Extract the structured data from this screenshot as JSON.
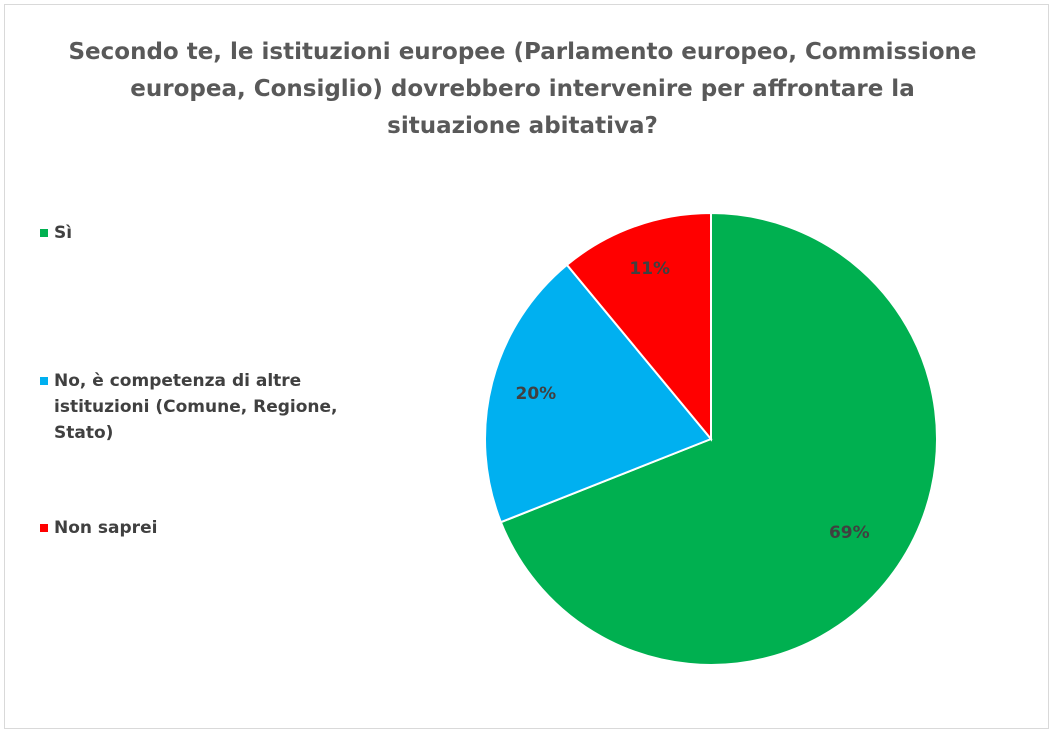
{
  "chart_data": {
    "type": "pie",
    "title": "Secondo te, le istituzioni europee (Parlamento europeo, Commissione europea, Consiglio) dovrebbero intervenire per affrontare la situazione abitativa?",
    "categories": [
      "Sì",
      "No, è competenza di altre istituzioni (Comune, Regione, Stato)",
      "Non saprei"
    ],
    "values": [
      69,
      20,
      11
    ],
    "data_labels": [
      "69%",
      "20%",
      "11%"
    ],
    "colors": [
      "#00b050",
      "#00b0f0",
      "#ff0000"
    ],
    "legend_position": "left"
  }
}
